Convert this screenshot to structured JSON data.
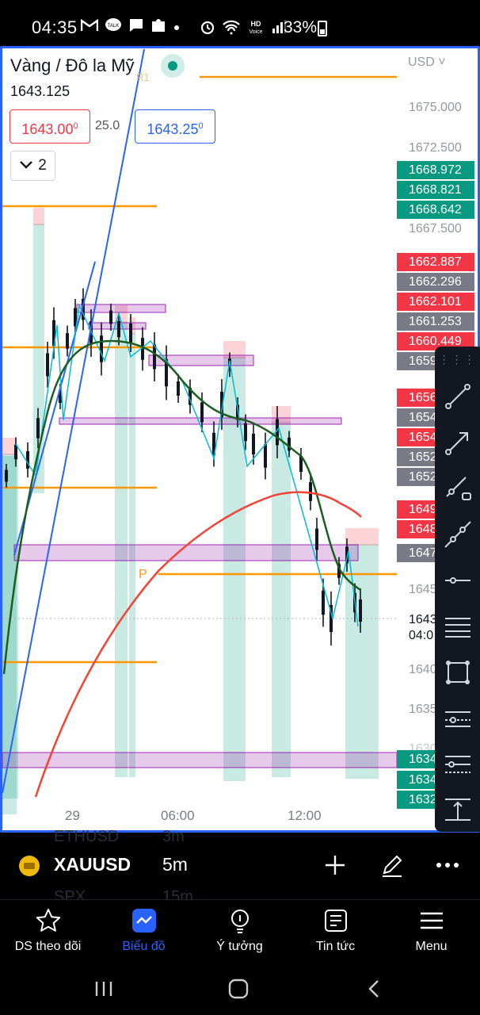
{
  "status_bar": {
    "time": "04:35",
    "battery": "33%",
    "icons": [
      "gmail-icon",
      "talk-icon",
      "chat-icon",
      "extension-icon",
      "dot-icon",
      "alarm-icon",
      "wifi-icon",
      "hd-voice-icon",
      "signal-icon",
      "battery-icon"
    ]
  },
  "chart_header": {
    "symbol_title": "Vàng / Đô la Mỹ",
    "last_price": "1643.125",
    "bid": "1643.00",
    "bid_sup": "0",
    "spread": "25.0",
    "ask": "1643.25",
    "ask_sup": "0",
    "indicators_count": "2"
  },
  "price_axis": {
    "currency": "USD",
    "labels": [
      "1675.000",
      "1672.500",
      "1667.500",
      "1645",
      "1640",
      "1635",
      "1630"
    ],
    "tags": [
      {
        "text": "1668.972",
        "color": "#089981"
      },
      {
        "text": "1668.821",
        "color": "#089981"
      },
      {
        "text": "1668.642",
        "color": "#089981"
      },
      {
        "text": "1662.887",
        "color": "#f23645"
      },
      {
        "text": "1662.296",
        "color": "#787b86"
      },
      {
        "text": "1662.101",
        "color": "#f23645"
      },
      {
        "text": "1661.253",
        "color": "#787b86"
      },
      {
        "text": "1660.449",
        "color": "#f23645"
      },
      {
        "text": "1659",
        "color": "#787b86"
      },
      {
        "text": "1656",
        "color": "#f23645"
      },
      {
        "text": "1654",
        "color": "#787b86"
      },
      {
        "text": "1654",
        "color": "#f23645"
      },
      {
        "text": "1652",
        "color": "#787b86"
      },
      {
        "text": "1652",
        "color": "#787b86"
      },
      {
        "text": "1649",
        "color": "#f23645"
      },
      {
        "text": "1648",
        "color": "#f23645"
      },
      {
        "text": "1647",
        "color": "#787b86"
      },
      {
        "text": "1634",
        "color": "#089981"
      },
      {
        "text": "1634",
        "color": "#089981"
      },
      {
        "text": "1632",
        "color": "#089981"
      }
    ],
    "current_price": "1643",
    "countdown": "04:0"
  },
  "time_axis": {
    "labels": [
      "29",
      "06:00",
      "12:00"
    ]
  },
  "chart_annotations": {
    "r1": "R1",
    "pivot": "P"
  },
  "drawing_tools": [
    "trend-line-icon",
    "arrow-line-icon",
    "ray-icon",
    "extended-line-icon",
    "horizontal-line-icon",
    "parallel-channel-icon",
    "rectangle-icon",
    "long-position-icon",
    "short-position-icon",
    "price-range-icon"
  ],
  "symbol_bar": {
    "symbol": "XAUUSD",
    "interval": "5m",
    "ghost_above": "ETHUSD",
    "ghost_above_interval": "3m",
    "ghost_below": "SPX",
    "ghost_below_interval": "15m"
  },
  "bottom_nav": [
    {
      "label": "DS theo dõi",
      "icon": "star-icon",
      "active": false
    },
    {
      "label": "Biểu đồ",
      "icon": "chart-icon",
      "active": true
    },
    {
      "label": "Ý tưởng",
      "icon": "lightbulb-icon",
      "active": false
    },
    {
      "label": "Tin tức",
      "icon": "news-icon",
      "active": false
    },
    {
      "label": "Menu",
      "icon": "menu-icon",
      "active": false
    }
  ],
  "colors": {
    "accent": "#2962ff",
    "bull": "#089981",
    "bear": "#f23645",
    "level": "#ff9800",
    "zone": "#9c27b0"
  }
}
